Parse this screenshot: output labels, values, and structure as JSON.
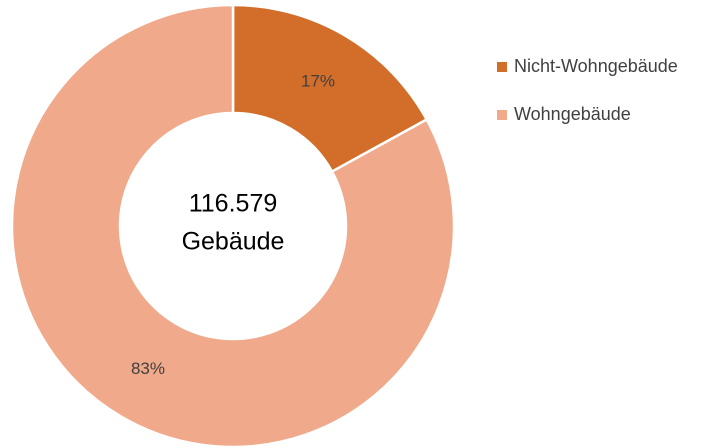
{
  "chart_data": {
    "type": "donut",
    "categories": [
      "Nicht-Wohngebäude",
      "Wohngebäude"
    ],
    "values": [
      17,
      83
    ],
    "value_labels": [
      "17%",
      "83%"
    ],
    "colors": [
      "#d26e2a",
      "#f0a98a"
    ],
    "center_label": [
      "116.579",
      "Gebäude"
    ],
    "legend": "right"
  }
}
